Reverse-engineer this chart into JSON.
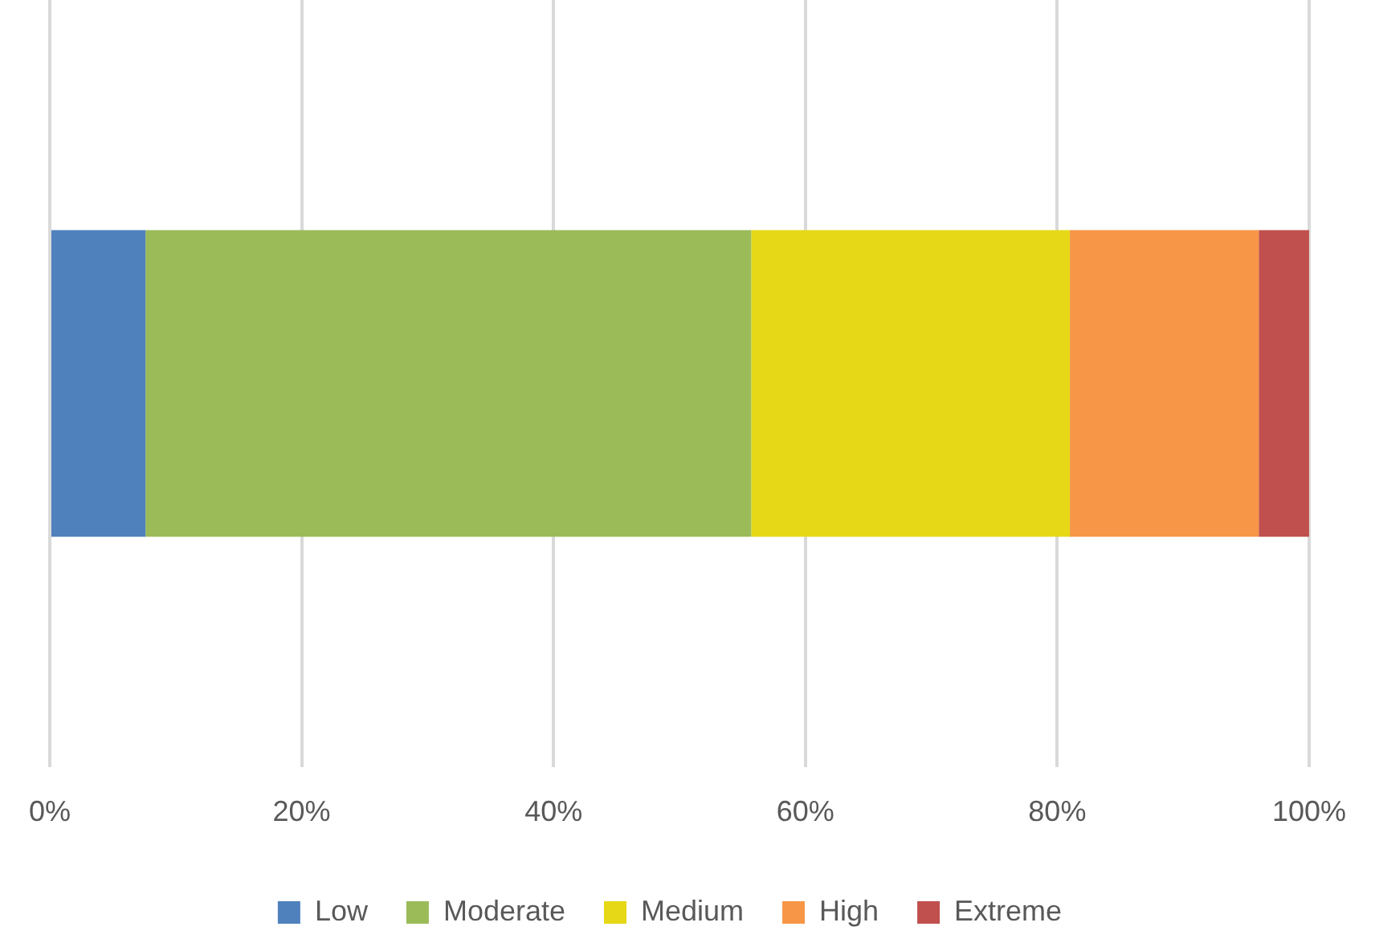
{
  "chart_data": {
    "type": "bar",
    "orientation": "horizontal",
    "stacked": true,
    "categories": [
      null
    ],
    "series": [
      {
        "name": "Low",
        "color": "#4f81bd",
        "values": [
          7.6
        ]
      },
      {
        "name": "Moderate",
        "color": "#9bbb59",
        "values": [
          48.1
        ]
      },
      {
        "name": "Medium",
        "color": "#e6d817",
        "values": [
          25.3
        ]
      },
      {
        "name": "High",
        "color": "#f79646",
        "values": [
          15.0
        ]
      },
      {
        "name": "Extreme",
        "color": "#c0504d",
        "values": [
          4.0
        ]
      }
    ],
    "xlim": [
      0,
      100
    ],
    "xticks": [
      {
        "value": 0,
        "label": "0%"
      },
      {
        "value": 20,
        "label": "20%"
      },
      {
        "value": 40,
        "label": "40%"
      },
      {
        "value": 60,
        "label": "60%"
      },
      {
        "value": 80,
        "label": "80%"
      },
      {
        "value": 100,
        "label": "100%"
      }
    ],
    "grid": "x",
    "legend": "bottom",
    "tick_labels": "x"
  }
}
